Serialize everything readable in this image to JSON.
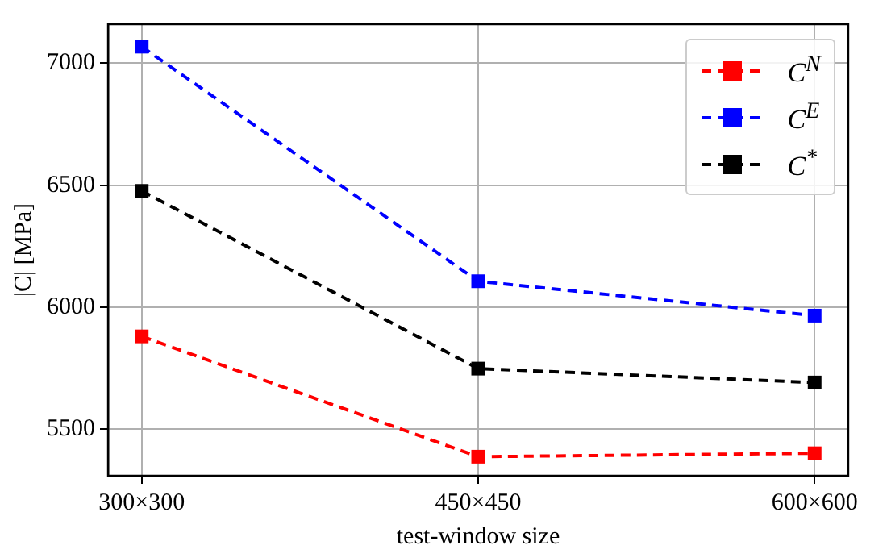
{
  "chart_data": {
    "type": "line",
    "xlabel": "test-window size",
    "ylabel": "|C| [MPa]",
    "categories": [
      "300×300",
      "450×450",
      "600×600"
    ],
    "series": [
      {
        "name": "C$^{N}$",
        "color": "#ff0000",
        "values": [
          5881,
          5388,
          5402
        ]
      },
      {
        "name": "C$^{E}$",
        "color": "#0000ff",
        "values": [
          7068,
          6107,
          5966
        ]
      },
      {
        "name": "C$^{*}$",
        "color": "#000000",
        "values": [
          6477,
          5749,
          5692
        ]
      }
    ],
    "ylim": [
      5310,
      7160
    ],
    "yticks": [
      5500,
      6000,
      6500,
      7000
    ],
    "grid": true,
    "legend": "top right",
    "marker": "square",
    "line_style": "dashed"
  }
}
